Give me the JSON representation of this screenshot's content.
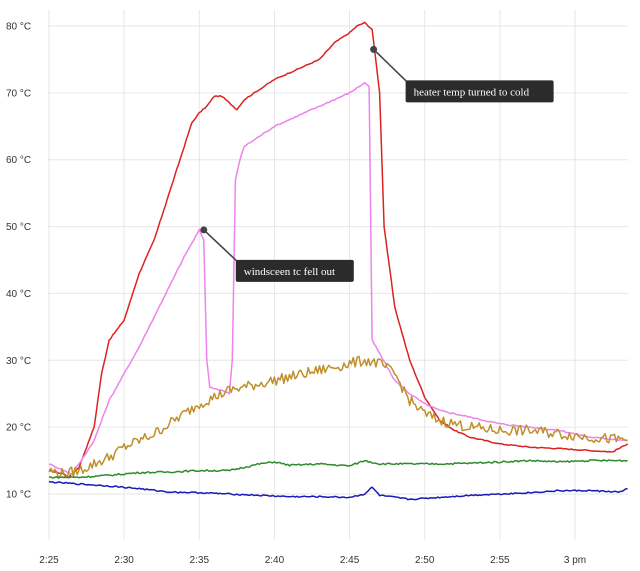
{
  "chart_data": {
    "type": "line",
    "title": "",
    "xlabel": "",
    "ylabel": "",
    "x_unit": "minutes",
    "xlim": [
      0,
      38.5
    ],
    "ylim": [
      0,
      83
    ],
    "grid": true,
    "y_ticks": [
      {
        "value": 10,
        "label": "10 °C"
      },
      {
        "value": 20,
        "label": "20 °C"
      },
      {
        "value": 30,
        "label": "30 °C"
      },
      {
        "value": 40,
        "label": "40 °C"
      },
      {
        "value": 50,
        "label": "50 °C"
      },
      {
        "value": 60,
        "label": "60 °C"
      },
      {
        "value": 70,
        "label": "70 °C"
      },
      {
        "value": 80,
        "label": "80 °C"
      }
    ],
    "x_ticks": [
      {
        "value": 0,
        "label": "2:25"
      },
      {
        "value": 5,
        "label": "2:30"
      },
      {
        "value": 10,
        "label": "2:35"
      },
      {
        "value": 15,
        "label": "2:40"
      },
      {
        "value": 20,
        "label": "2:45"
      },
      {
        "value": 25,
        "label": "2:50"
      },
      {
        "value": 30,
        "label": "2:55"
      },
      {
        "value": 35,
        "label": "3 pm"
      }
    ],
    "series": [
      {
        "color": "#dd2222",
        "points": [
          [
            0,
            13.5
          ],
          [
            1,
            13
          ],
          [
            1.3,
            12.5
          ],
          [
            2,
            14
          ],
          [
            3,
            20
          ],
          [
            3.5,
            28
          ],
          [
            4,
            33
          ],
          [
            5,
            36
          ],
          [
            6,
            43
          ],
          [
            7,
            48
          ],
          [
            8,
            55
          ],
          [
            9,
            62
          ],
          [
            9.5,
            65.5
          ],
          [
            10,
            67
          ],
          [
            10.5,
            68
          ],
          [
            11,
            69.5
          ],
          [
            11.5,
            69.5
          ],
          [
            12,
            68.5
          ],
          [
            12.5,
            67.5
          ],
          [
            13,
            69
          ],
          [
            14,
            70.5
          ],
          [
            15,
            72
          ],
          [
            16,
            73
          ],
          [
            17,
            74
          ],
          [
            18,
            75
          ],
          [
            19,
            77.5
          ],
          [
            20,
            79
          ],
          [
            20.5,
            80
          ],
          [
            21,
            80.5
          ],
          [
            21.5,
            79.5
          ],
          [
            22,
            70
          ],
          [
            22.3,
            50
          ],
          [
            23,
            38
          ],
          [
            24,
            30
          ],
          [
            25,
            24.5
          ],
          [
            26,
            21
          ],
          [
            27,
            19.5
          ],
          [
            28,
            18.5
          ],
          [
            30,
            17.5
          ],
          [
            32,
            17
          ],
          [
            34,
            16.8
          ],
          [
            36,
            16.5
          ],
          [
            37.5,
            16.3
          ],
          [
            38.5,
            17.5
          ]
        ]
      },
      {
        "color": "#ee82ee",
        "points": [
          [
            0,
            14.5
          ],
          [
            1,
            13.5
          ],
          [
            1.5,
            13
          ],
          [
            2,
            14.5
          ],
          [
            3,
            18
          ],
          [
            4,
            24
          ],
          [
            5,
            28
          ],
          [
            6,
            32
          ],
          [
            7,
            36.5
          ],
          [
            8,
            41
          ],
          [
            9,
            45.5
          ],
          [
            10,
            49.5
          ],
          [
            10.3,
            48
          ],
          [
            10.5,
            30
          ],
          [
            10.7,
            26
          ],
          [
            11.5,
            25.5
          ],
          [
            12,
            25
          ],
          [
            12.2,
            30
          ],
          [
            12.4,
            57
          ],
          [
            12.7,
            60
          ],
          [
            13,
            62
          ],
          [
            14,
            63.5
          ],
          [
            15,
            65
          ],
          [
            16,
            66
          ],
          [
            17,
            67
          ],
          [
            18,
            68
          ],
          [
            19,
            69
          ],
          [
            20,
            70
          ],
          [
            21,
            71.5
          ],
          [
            21.3,
            71
          ],
          [
            21.5,
            33
          ],
          [
            22,
            31
          ],
          [
            23,
            27
          ],
          [
            24,
            25
          ],
          [
            25,
            23.5
          ],
          [
            26,
            22.5
          ],
          [
            28,
            21.5
          ],
          [
            30,
            20.5
          ],
          [
            32,
            20
          ],
          [
            34,
            19.5
          ],
          [
            36,
            18.5
          ],
          [
            38.5,
            18
          ]
        ]
      },
      {
        "color": "#bf8f2a",
        "points": [
          [
            0,
            13.5
          ],
          [
            1,
            13
          ],
          [
            2,
            13.5
          ],
          [
            3,
            14.5
          ],
          [
            4,
            15.5
          ],
          [
            5,
            17
          ],
          [
            6,
            18
          ],
          [
            7,
            19
          ],
          [
            8,
            20.5
          ],
          [
            9,
            22
          ],
          [
            10,
            23.5
          ],
          [
            11,
            24.5
          ],
          [
            12,
            25.5
          ],
          [
            13,
            26
          ],
          [
            14,
            26.5
          ],
          [
            15,
            27
          ],
          [
            16,
            27.5
          ],
          [
            17,
            28
          ],
          [
            18,
            28.5
          ],
          [
            19,
            29
          ],
          [
            20,
            29.5
          ],
          [
            21,
            30
          ],
          [
            22,
            29.5
          ],
          [
            23,
            28
          ],
          [
            24,
            24
          ],
          [
            25,
            22
          ],
          [
            26,
            21
          ],
          [
            27,
            20.5
          ],
          [
            28,
            20
          ],
          [
            30,
            19.5
          ],
          [
            32,
            19.5
          ],
          [
            34,
            19
          ],
          [
            36,
            18.5
          ],
          [
            38.5,
            18
          ]
        ]
      },
      {
        "color": "#2e8b2e",
        "points": [
          [
            0,
            12.5
          ],
          [
            2,
            12.5
          ],
          [
            4,
            12.8
          ],
          [
            6,
            13.2
          ],
          [
            8,
            13.3
          ],
          [
            10,
            13.5
          ],
          [
            12,
            13.5
          ],
          [
            14,
            14.5
          ],
          [
            15,
            14.8
          ],
          [
            16,
            14.3
          ],
          [
            18,
            14.5
          ],
          [
            20,
            14.2
          ],
          [
            21,
            15
          ],
          [
            22,
            14.5
          ],
          [
            24,
            14.5
          ],
          [
            26,
            14.5
          ],
          [
            28,
            14.6
          ],
          [
            30,
            14.8
          ],
          [
            32,
            15
          ],
          [
            34,
            14.8
          ],
          [
            36,
            15
          ],
          [
            38.5,
            15
          ]
        ]
      },
      {
        "color": "#1a1ab8",
        "points": [
          [
            0,
            11.8
          ],
          [
            2,
            11.5
          ],
          [
            4,
            11.2
          ],
          [
            6,
            10.8
          ],
          [
            8,
            10.3
          ],
          [
            10,
            10.2
          ],
          [
            12,
            10
          ],
          [
            14,
            9.8
          ],
          [
            16,
            9.6
          ],
          [
            18,
            9.6
          ],
          [
            20,
            9.5
          ],
          [
            21,
            10
          ],
          [
            21.5,
            11
          ],
          [
            22,
            9.8
          ],
          [
            24,
            9.2
          ],
          [
            26,
            9.5
          ],
          [
            28,
            9.8
          ],
          [
            30,
            10
          ],
          [
            32,
            10.2
          ],
          [
            34,
            10.5
          ],
          [
            36,
            10.5
          ],
          [
            38,
            10.3
          ],
          [
            38.5,
            10.8
          ]
        ]
      }
    ],
    "annotations": [
      {
        "text": "windsceen tc fell out",
        "x": 10.3,
        "y": 49.5
      },
      {
        "text": "heater temp turned to cold",
        "x": 21.6,
        "y": 76.5
      }
    ]
  }
}
